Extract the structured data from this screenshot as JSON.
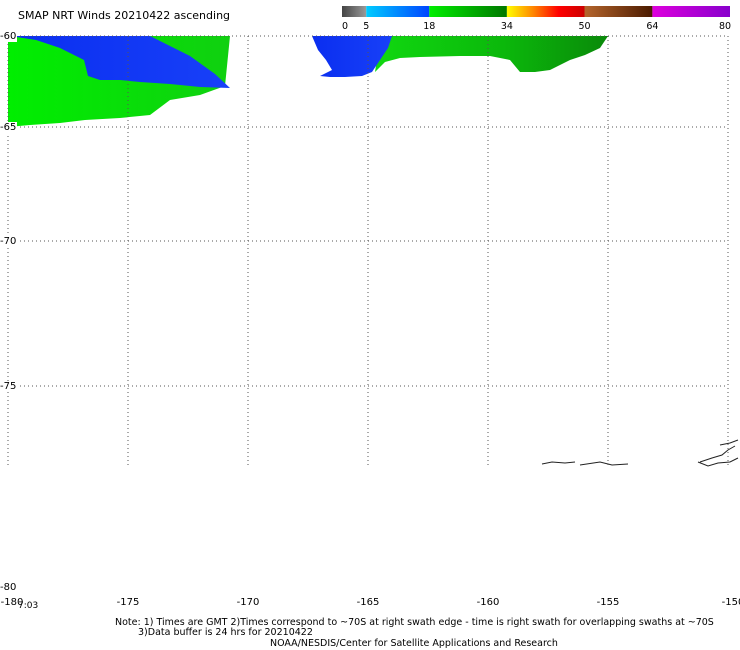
{
  "title": "SMAP NRT Winds 20210422 ascending",
  "colorbar": {
    "ticks": [
      "0",
      "5",
      "18",
      "34",
      "50",
      "64",
      "80"
    ],
    "tick_values": [
      0,
      5,
      18,
      34,
      50,
      64,
      80
    ],
    "stops": [
      {
        "from": 0,
        "to": 5,
        "colors": [
          "#444444",
          "#9a9a9a"
        ]
      },
      {
        "from": 5,
        "to": 18,
        "colors": [
          "#00ccff",
          "#0044ff"
        ]
      },
      {
        "from": 18,
        "to": 34,
        "colors": [
          "#00ee00",
          "#007700"
        ]
      },
      {
        "from": 34,
        "to": 50,
        "colors": [
          "#ffff00",
          "#ff8800",
          "#ff0000",
          "#cc0000"
        ]
      },
      {
        "from": 50,
        "to": 64,
        "colors": [
          "#b5652c",
          "#4a1a00"
        ]
      },
      {
        "from": 64,
        "to": 80,
        "colors": [
          "#dd00dd",
          "#8800cc"
        ]
      }
    ]
  },
  "map": {
    "lat_range": [
      -80,
      -60
    ],
    "lon_range": [
      -180,
      -150
    ],
    "lat_labels": [
      "-60",
      "-65",
      "-70",
      "-75",
      "-80"
    ],
    "lat_values": [
      -60,
      -65,
      -70,
      -75,
      -80
    ],
    "lon_labels": [
      "-180",
      "-175",
      "-170",
      "-165",
      "-160",
      "-155",
      "-150"
    ],
    "lon_values": [
      -180,
      -175,
      -170,
      -165,
      -160,
      -155,
      -150
    ],
    "time_label": "7:03",
    "colors": {
      "blue": "#0a2ef0",
      "green": "#00ee00",
      "dark_green": "#0a8a0a",
      "grid": "#555555"
    }
  },
  "notes": {
    "line1": "Note: 1) Times are GMT 2)Times correspond to ~70S at right swath edge - time is right swath for overlapping swaths at ~70S",
    "line2": "3)Data buffer is 24 hrs for 20210422",
    "line3": "NOAA/NESDIS/Center for Satellite Applications and Research"
  }
}
